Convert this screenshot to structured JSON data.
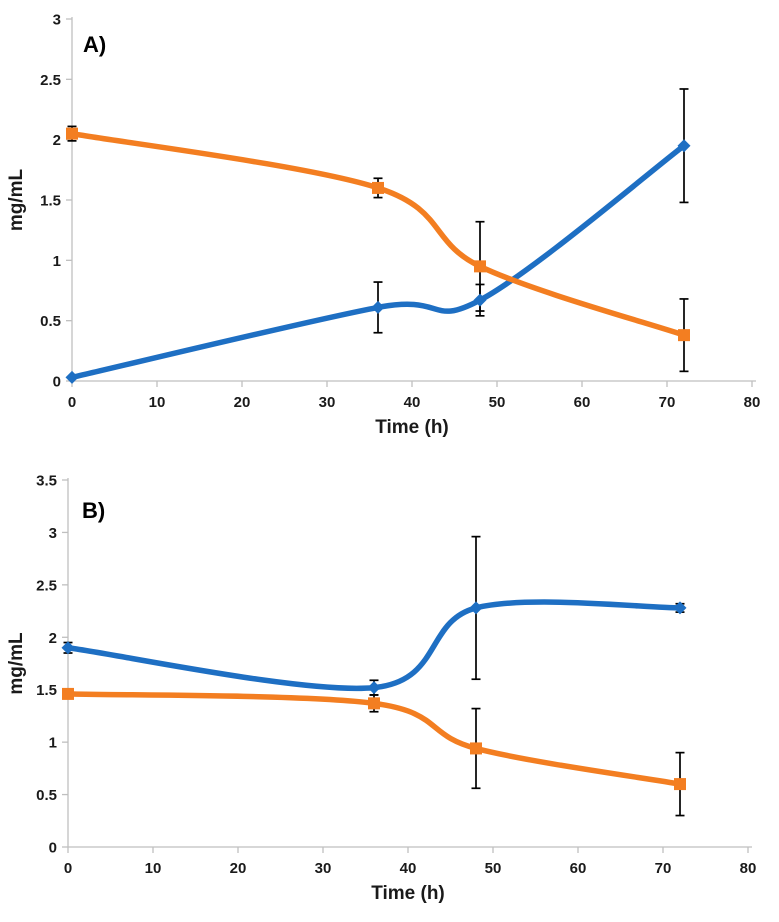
{
  "figure": {
    "background": "#FFFFFF",
    "description": "Two stacked line charts A) and B) showing concentration (mg/mL) vs Time (h), each with a blue diamond-marker series and an orange square-marker series with black error bars"
  },
  "style": {
    "axis_color": "#BFBFBF",
    "tick_text_color": "#1A1A1A",
    "error_bar_color": "#000000",
    "blue": "#1E6FC3",
    "orange": "#F37E21"
  },
  "chart_data": [
    {
      "type": "line",
      "panel_label": "A)",
      "title": "",
      "xlabel": "Time (h)",
      "ylabel": "mg/mL",
      "xlim": [
        0,
        80
      ],
      "ylim": [
        0,
        3
      ],
      "xticks": [
        0,
        10,
        20,
        30,
        40,
        50,
        60,
        70,
        80
      ],
      "yticks": [
        0,
        0.5,
        1,
        1.5,
        2,
        2.5,
        3
      ],
      "grid": false,
      "legend": "none",
      "smooth_lines": true,
      "x": [
        0,
        36,
        48,
        72
      ],
      "series": [
        {
          "name": "blue-series",
          "marker": "diamond",
          "color_key": "blue",
          "values": [
            0.03,
            0.61,
            0.67,
            1.95
          ],
          "errors": [
            0,
            0.21,
            0.13,
            0.47
          ]
        },
        {
          "name": "orange-series",
          "marker": "square",
          "color_key": "orange",
          "values": [
            2.05,
            1.6,
            0.95,
            0.38
          ],
          "errors": [
            0.06,
            0.08,
            0.37,
            0.3
          ]
        }
      ]
    },
    {
      "type": "line",
      "panel_label": "B)",
      "title": "",
      "xlabel": "Time (h)",
      "ylabel": "mg/mL",
      "xlim": [
        0,
        80
      ],
      "ylim": [
        0,
        3.5
      ],
      "xticks": [
        0,
        10,
        20,
        30,
        40,
        50,
        60,
        70,
        80
      ],
      "yticks": [
        0,
        0.5,
        1,
        1.5,
        2,
        2.5,
        3,
        3.5
      ],
      "grid": false,
      "legend": "none",
      "smooth_lines": true,
      "x": [
        0,
        36,
        48,
        72
      ],
      "series": [
        {
          "name": "blue-series",
          "marker": "diamond",
          "color_key": "blue",
          "values": [
            1.9,
            1.52,
            2.28,
            2.28
          ],
          "errors": [
            0.05,
            0.07,
            0.68,
            0.04
          ]
        },
        {
          "name": "orange-series",
          "marker": "square",
          "color_key": "orange",
          "values": [
            1.46,
            1.37,
            0.94,
            0.6
          ],
          "errors": [
            0.04,
            0.08,
            0.38,
            0.3
          ]
        }
      ]
    }
  ]
}
